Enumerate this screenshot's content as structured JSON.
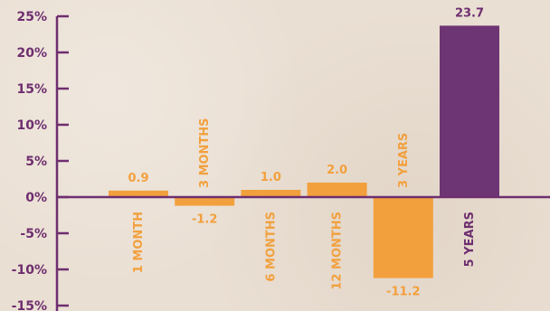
{
  "chart_data": {
    "type": "bar",
    "categories": [
      "1 MONTH",
      "3 MONTHS",
      "6 MONTHS",
      "12 MONTHS",
      "3 YEARS",
      "5 YEARS"
    ],
    "values": [
      0.9,
      -1.2,
      1.0,
      2.0,
      -11.2,
      23.7
    ],
    "value_labels": [
      "0.9",
      "-1.2",
      "1.0",
      "2.0",
      "-11.2",
      "23.7"
    ],
    "y_ticks": [
      {
        "value": 25,
        "label": "25%"
      },
      {
        "value": 20,
        "label": "20%"
      },
      {
        "value": 15,
        "label": "15%"
      },
      {
        "value": 10,
        "label": "10%"
      },
      {
        "value": 5,
        "label": "5%"
      },
      {
        "value": 0,
        "label": "0%"
      },
      {
        "value": -5,
        "label": "-5%"
      },
      {
        "value": -10,
        "label": "-10%"
      },
      {
        "value": -15,
        "label": "-15%"
      }
    ],
    "ylim": [
      -15,
      25
    ],
    "grid": false,
    "legend": "none",
    "title": "",
    "xlabel": "",
    "ylabel": "",
    "colors": {
      "bar": "#f2a03d",
      "highlight_bar": "#6e3574",
      "axis": "#6e2e6f",
      "background": "#eadfd3"
    },
    "highlight_index": 5
  }
}
